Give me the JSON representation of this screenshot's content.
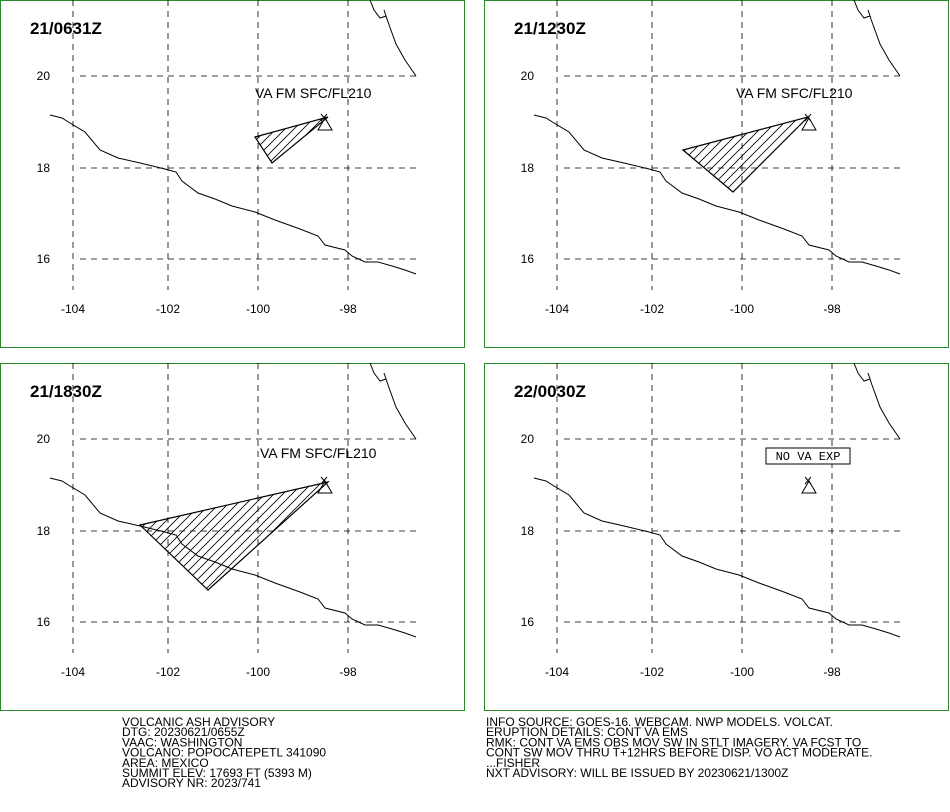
{
  "panels": [
    {
      "time": "21/0631Z",
      "label": "VA FM SFC/FL210",
      "lon_labels": [
        "-104",
        "-102",
        "-100",
        "-98"
      ],
      "lat_labels": [
        "20",
        "18",
        "16"
      ]
    },
    {
      "time": "21/1230Z",
      "label": "VA FM SFC/FL210",
      "lon_labels": [
        "-104",
        "-102",
        "-100",
        "-98"
      ],
      "lat_labels": [
        "20",
        "18",
        "16"
      ]
    },
    {
      "time": "21/1830Z",
      "label": "VA FM SFC/FL210",
      "lon_labels": [
        "-104",
        "-102",
        "-100",
        "-98"
      ],
      "lat_labels": [
        "20",
        "18",
        "16"
      ]
    },
    {
      "time": "22/0030Z",
      "label": "NO VA EXP",
      "lon_labels": [
        "-104",
        "-102",
        "-100",
        "-98"
      ],
      "lat_labels": [
        "20",
        "18",
        "16"
      ]
    }
  ],
  "advisory": {
    "left": [
      "VOLCANIC ASH ADVISORY",
      "DTG: 20230621/0655Z",
      "VAAC: WASHINGTON",
      "VOLCANO: POPOCATEPETL 341090",
      "AREA: MEXICO",
      "SUMMIT ELEV: 17693 FT (5393 M)",
      "ADVISORY NR: 2023/741"
    ],
    "right": [
      "INFO SOURCE: GOES-16. WEBCAM. NWP MODELS. VOLCAT.",
      "ERUPTION DETAILS: CONT VA EMS",
      "RMK: CONT VA EMS OBS MOV SW IN STLT IMAGERY. VA FCST TO",
      "CONT SW MOV THRU T+12HRS BEFORE DISP. VO ACT MODERATE.",
      "...FISHER",
      "NXT ADVISORY: WILL BE ISSUED BY 20230621/1300Z"
    ]
  }
}
